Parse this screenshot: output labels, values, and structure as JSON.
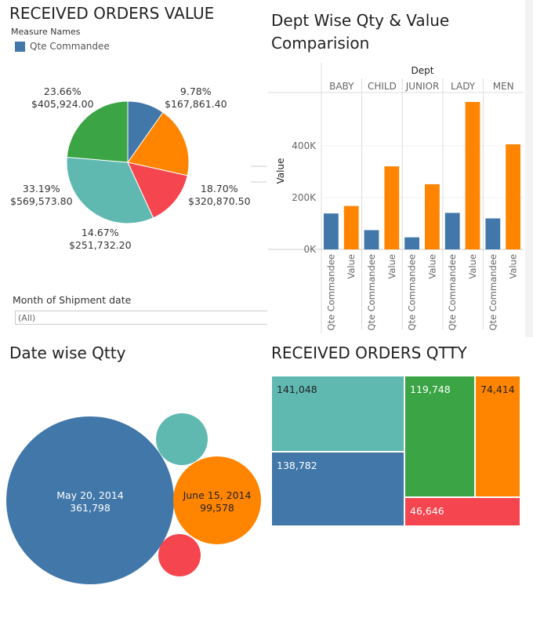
{
  "colors": {
    "blue": "#4177a9",
    "orange": "#ff8500",
    "red": "#f5454f",
    "teal": "#5fb9b1",
    "green": "#3ba445"
  },
  "chart_data": [
    {
      "type": "pie",
      "title": "RECEIVED ORDERS VALUE",
      "legend_title": "Measure Names",
      "legend": [
        {
          "name": "Qte Commandee",
          "color": "#4177a9"
        }
      ],
      "slices": [
        {
          "percent_label": "9.78%",
          "value_label": "$167,861.40",
          "percent": 9.78,
          "value": 167861.4,
          "color": "#4177a9"
        },
        {
          "percent_label": "18.70%",
          "value_label": "$320,870.50",
          "percent": 18.7,
          "value": 320870.5,
          "color": "#ff8500"
        },
        {
          "percent_label": "14.67%",
          "value_label": "$251,732.20",
          "percent": 14.67,
          "value": 251732.2,
          "color": "#f5454f"
        },
        {
          "percent_label": "33.19%",
          "value_label": "$569,573.80",
          "percent": 33.19,
          "value": 569573.8,
          "color": "#5fb9b1"
        },
        {
          "percent_label": "23.66%",
          "value_label": "$405,924.00",
          "percent": 23.66,
          "value": 405924.0,
          "color": "#3ba445"
        }
      ]
    },
    {
      "type": "bar",
      "title": "Dept Wise Qty & Value Comparision",
      "column_header": "Dept",
      "categories": [
        "BABY",
        "CHILD",
        "JUNIOR",
        "LADY",
        "MEN"
      ],
      "measures": [
        "Qte Commandee",
        "Value"
      ],
      "ylabel": "Value",
      "ylim": [
        0,
        606000
      ],
      "yticks": [
        {
          "v": 0,
          "label": "0K"
        },
        {
          "v": 200000,
          "label": "200K"
        },
        {
          "v": 400000,
          "label": "400K"
        }
      ],
      "grid": true,
      "series": [
        {
          "name": "Qte Commandee",
          "color": "#4177a9",
          "values": [
            138782,
            74414,
            46646,
            141048,
            119748
          ]
        },
        {
          "name": "Value",
          "color": "#ff8500",
          "values": [
            167861,
            320871,
            251732,
            569574,
            405924
          ]
        }
      ]
    },
    {
      "type": "bubble",
      "title": "Date wise Qtty",
      "bubbles": [
        {
          "date": "May 20, 2014",
          "value_label": "361,798",
          "value": 361798,
          "color": "#4177a9"
        },
        {
          "date": "June 15, 2014",
          "value_label": "99,578",
          "value": 99578,
          "color": "#ff8500"
        },
        {
          "date": "",
          "value_label": "",
          "color": "#5fb9b1"
        },
        {
          "date": "",
          "value_label": "",
          "color": "#f5454f"
        }
      ]
    },
    {
      "type": "treemap",
      "title": "RECEIVED ORDERS QTTY",
      "cells": [
        {
          "label": "141,048",
          "value": 141048,
          "color": "#5fb9b1"
        },
        {
          "label": "138,782",
          "value": 138782,
          "color": "#4177a9"
        },
        {
          "label": "119,748",
          "value": 119748,
          "color": "#3ba445"
        },
        {
          "label": "74,414",
          "value": 74414,
          "color": "#ff8500"
        },
        {
          "label": "46,646",
          "value": 46646,
          "color": "#f5454f"
        }
      ]
    }
  ],
  "filter": {
    "label": "Month of Shipment date",
    "value": "(All)"
  }
}
